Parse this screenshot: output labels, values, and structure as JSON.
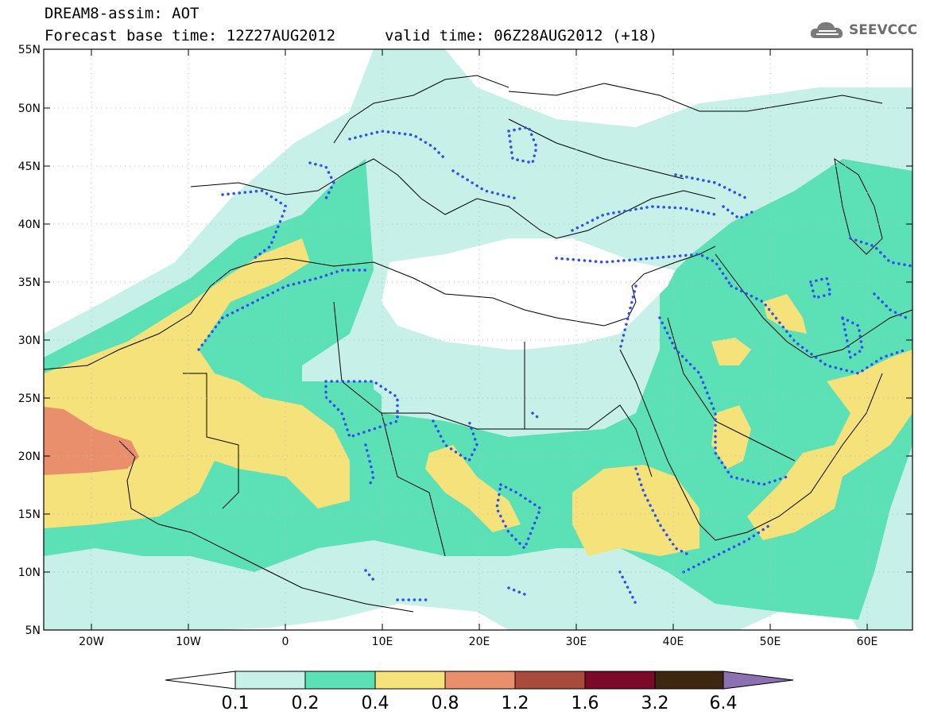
{
  "header": {
    "line1": "DREAM8-assim: AOT",
    "line2": "Forecast base time: 12Z27AUG2012",
    "valid": "valid time: 06Z28AUG2012 (+18)",
    "logo_text": "SEEVCCC"
  },
  "axes": {
    "lat_labels": [
      "55N",
      "50N",
      "45N",
      "40N",
      "35N",
      "30N",
      "25N",
      "20N",
      "15N",
      "10N",
      "5N"
    ],
    "lon_labels": [
      "20W",
      "10W",
      "0",
      "10E",
      "20E",
      "30E",
      "40E",
      "50E",
      "60E"
    ]
  },
  "colorbar": {
    "labels": [
      "0.1",
      "0.2",
      "0.4",
      "0.8",
      "1.2",
      "1.6",
      "3.2",
      "6.4"
    ],
    "colors": [
      "#ffffff",
      "#c6f0e8",
      "#5ce0b6",
      "#f6e27a",
      "#ea8f6c",
      "#a84b3c",
      "#7a0a28",
      "#3d2710",
      "#8c70b2"
    ]
  },
  "palette": {
    "c1": "#c6f0e8",
    "c2": "#5ce0b6",
    "c3": "#f6e27a",
    "c4": "#ea8f6c",
    "contour_dots": "#2f4ff0"
  },
  "icons": {
    "logo": "cloud-icon"
  }
}
